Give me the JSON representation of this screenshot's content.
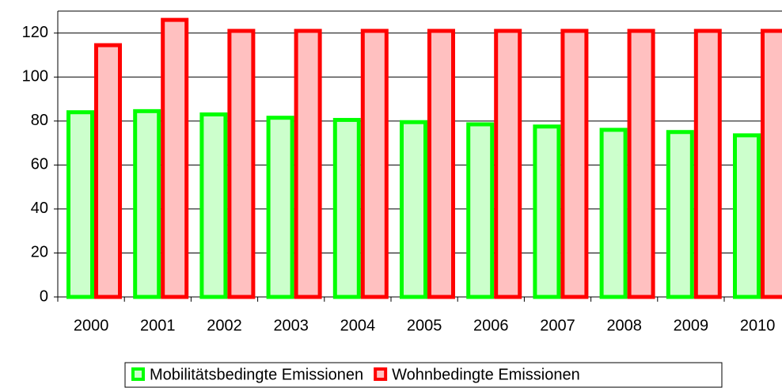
{
  "chart_data": {
    "type": "bar",
    "categories": [
      "2000",
      "2001",
      "2002",
      "2003",
      "2004",
      "2005",
      "2006",
      "2007",
      "2008",
      "2009",
      "2010"
    ],
    "series": [
      {
        "name": "Mobilitätsbedingte Emissionen",
        "color": "#00ff00",
        "values": [
          84,
          84.5,
          83,
          81.5,
          80.5,
          79.5,
          78.5,
          77.5,
          76,
          75,
          73.5
        ]
      },
      {
        "name": "Wohnbedingte Emissionen",
        "color": "#ff0000",
        "values": [
          114.5,
          126,
          121,
          121,
          121,
          121,
          121,
          121,
          121,
          121,
          121
        ]
      }
    ],
    "ylim": [
      0,
      130
    ],
    "yticks": [
      0,
      20,
      40,
      60,
      80,
      100,
      120
    ],
    "grid": true,
    "legend": "bottom"
  }
}
